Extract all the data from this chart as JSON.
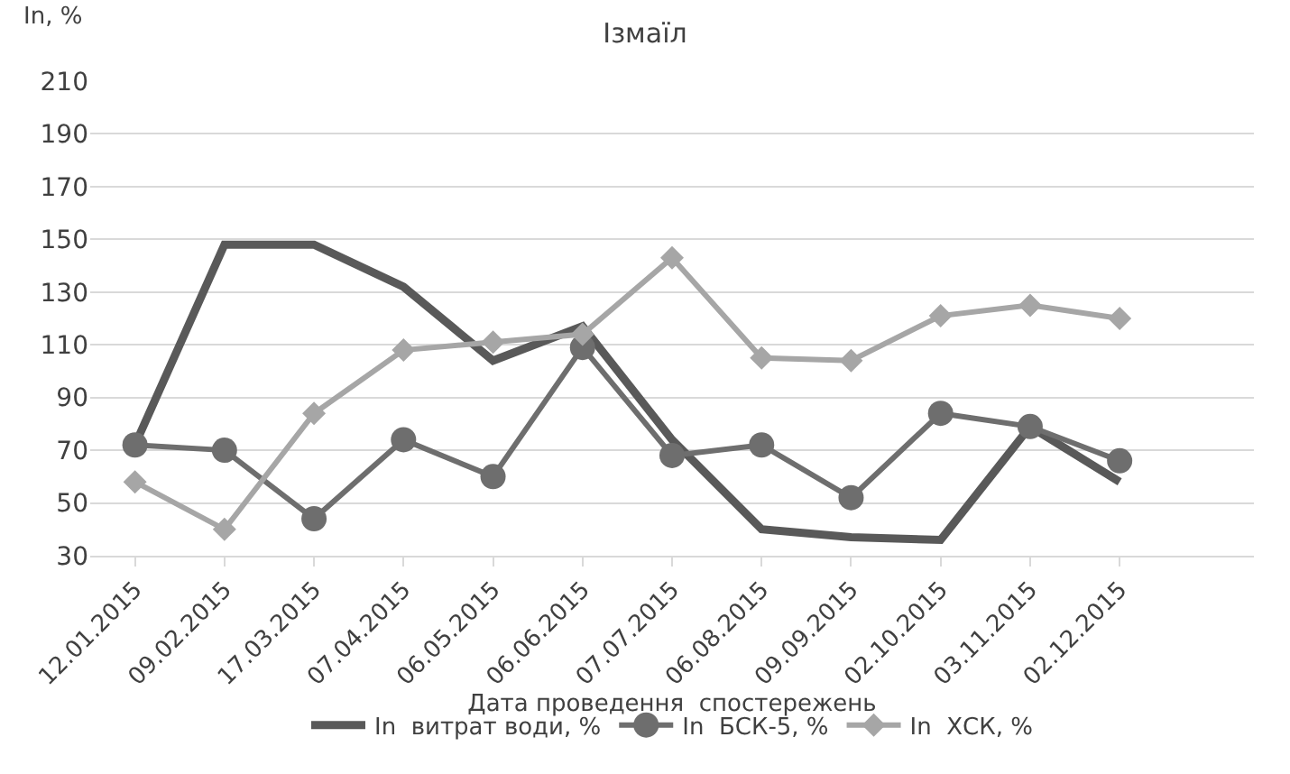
{
  "chart_data": {
    "type": "line",
    "title": "Ізмаїл",
    "ylabel": "In, %",
    "xlabel": "Дата проведення  спостережень",
    "categories": [
      "12.01.2015",
      "09.02.2015",
      "17.03.2015",
      "07.04.2015",
      "06.05.2015",
      "06.06.2015",
      "07.07.2015",
      "06.08.2015",
      "09.09.2015",
      "02.10.2015",
      "03.11.2015",
      "02.12.2015",
      null
    ],
    "series": [
      {
        "name": "In  витрат води, %",
        "color": "#595959",
        "marker": "none",
        "values": [
          72,
          148,
          148,
          132,
          104,
          117,
          74,
          40,
          37,
          36,
          79,
          58,
          null
        ]
      },
      {
        "name": "In  БСК-5, %",
        "color": "#6e6e6e",
        "marker": "circle",
        "values": [
          72,
          70,
          44,
          74,
          60,
          109,
          68,
          72,
          52,
          84,
          79,
          66,
          null
        ]
      },
      {
        "name": "In  ХСК, %",
        "color": "#a6a6a6",
        "marker": "diamond",
        "values": [
          58,
          40,
          84,
          108,
          111,
          114,
          143,
          105,
          104,
          121,
          125,
          120,
          null
        ]
      }
    ],
    "ylim": [
      30,
      210
    ],
    "yticks": [
      30,
      50,
      70,
      90,
      110,
      130,
      150,
      170,
      190,
      210
    ],
    "grid": "y",
    "legend": "bottom"
  }
}
